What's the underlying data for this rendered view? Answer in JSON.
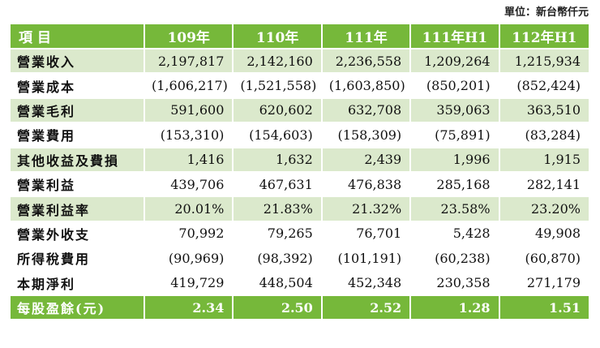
{
  "unit": "單位：新台幣仟元",
  "header": {
    "label": "項目",
    "years": [
      "109年",
      "110年",
      "111年",
      "111年H1",
      "112年H1"
    ]
  },
  "rows": [
    {
      "label": "營業收入",
      "values": [
        "2,197,817",
        "2,142,160",
        "2,236,558",
        "1,209,264",
        "1,215,934"
      ]
    },
    {
      "label": "營業成本",
      "values": [
        "(1,606,217)",
        "(1,521,558)",
        "(1,603,850)",
        "(850,201)",
        "(852,424)"
      ]
    },
    {
      "label": "營業毛利",
      "values": [
        "591,600",
        "620,602",
        "632,708",
        "359,063",
        "363,510"
      ]
    },
    {
      "label": "營業費用",
      "values": [
        "(153,310)",
        "(154,603)",
        "(158,309)",
        "(75,891)",
        "(83,284)"
      ]
    },
    {
      "label": "其他收益及費損",
      "values": [
        "1,416",
        "1,632",
        "2,439",
        "1,996",
        "1,915"
      ]
    },
    {
      "label": "營業利益",
      "values": [
        "439,706",
        "467,631",
        "476,838",
        "285,168",
        "282,141"
      ]
    },
    {
      "label": "營業利益率",
      "values": [
        "20.01%",
        "21.83%",
        "21.32%",
        "23.58%",
        "23.20%"
      ]
    },
    {
      "label": "營業外收支",
      "values": [
        "70,992",
        "79,265",
        "76,701",
        "5,428",
        "49,908"
      ]
    },
    {
      "label": "所得稅費用",
      "values": [
        "(90,969)",
        "(98,392)",
        "(101,191)",
        "(60,238)",
        "(60,870)"
      ]
    },
    {
      "label": "本期淨利",
      "values": [
        "419,729",
        "448,504",
        "452,348",
        "230,358",
        "271,179"
      ]
    },
    {
      "label": "每股盈餘(元)",
      "values": [
        "2.34",
        "2.50",
        "2.52",
        "1.28",
        "1.51"
      ]
    }
  ],
  "colors": {
    "accent": "#76b83a",
    "shade": "#dbe9cc"
  }
}
